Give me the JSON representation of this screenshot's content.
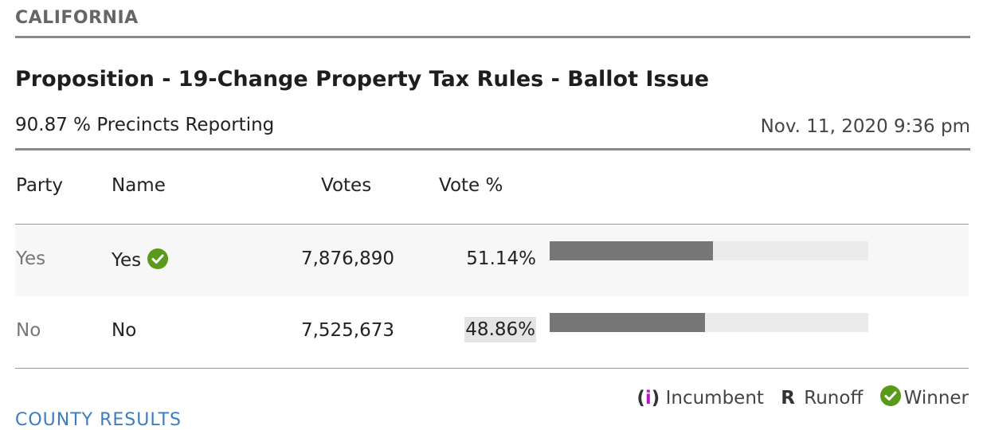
{
  "header": {
    "state": "CALIFORNIA",
    "title": "Proposition - 19-Change Property Tax Rules - Ballot Issue",
    "precincts": "90.87 % Precincts Reporting",
    "timestamp": "Nov. 11, 2020 9:36 pm"
  },
  "table": {
    "columns": [
      "Party",
      "Name",
      "Votes",
      "Vote %"
    ],
    "rows": [
      {
        "party": "Yes",
        "name": "Yes",
        "votes": "7,876,890",
        "pct": "51.14%",
        "share": 0.5114,
        "winner": true
      },
      {
        "party": "No",
        "name": "No",
        "votes": "7,525,673",
        "pct": "48.86%",
        "share": 0.4886,
        "winner": false
      }
    ]
  },
  "legend": {
    "incumbent_mark": "i",
    "incumbent_label": "Incumbent",
    "runoff_mark": "R",
    "runoff_label": "Runoff",
    "winner_label": "Winner"
  },
  "links": {
    "county_results": "COUNTY RESULTS"
  },
  "colors": {
    "winner_check": "#5a9a1a",
    "bar_fill": "#767676",
    "bar_track": "#ebebeb",
    "incumbent_i": "#b01ec0",
    "link": "#3a7dc2"
  },
  "icons": {
    "winner": "check-circle-icon"
  }
}
